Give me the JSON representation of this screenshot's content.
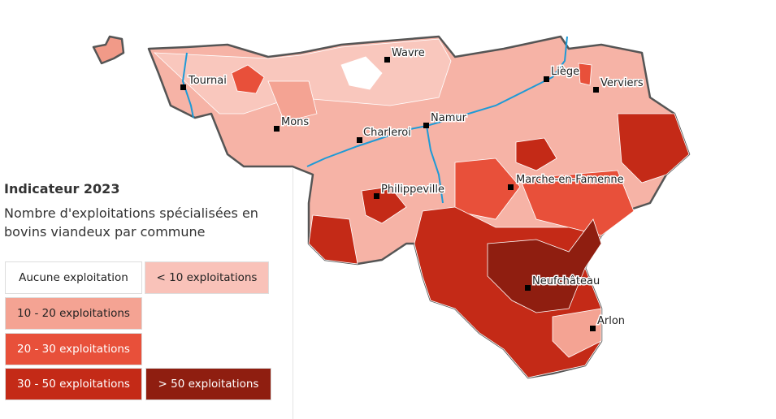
{
  "legend": {
    "title": "Indicateur 2023",
    "subtitle": "Nombre d'exploitations spécialisées en bovins viandeux par commune",
    "items": [
      {
        "label": "Aucune exploitation",
        "color": "#ffffff"
      },
      {
        "label": "< 10 exploitations",
        "color": "#f9c2b9"
      },
      {
        "label": "10 - 20 exploitations",
        "color": "#f4a393"
      },
      {
        "label": "20 - 30 exploitations",
        "color": "#e8503a"
      },
      {
        "label": "30 - 50 exploitations",
        "color": "#c42a17"
      },
      {
        "label": "> 50 exploitations",
        "color": "#8f1e10"
      }
    ]
  },
  "cities": [
    "Wavre",
    "Tournai",
    "Liège",
    "Verviers",
    "Mons",
    "Namur",
    "Charleroi",
    "Marche-en-Famenne",
    "Philippeville",
    "Neufchâteau",
    "Arlon"
  ]
}
